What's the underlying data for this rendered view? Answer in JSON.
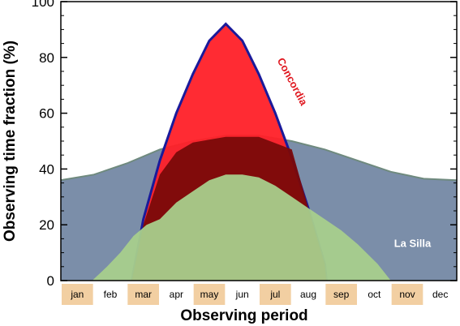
{
  "chart_data": {
    "type": "area",
    "xlabel": "Observing period",
    "ylabel": "Observing time fraction (%)",
    "ylim": [
      0,
      100
    ],
    "yticks": [
      "0",
      "20",
      "40",
      "60",
      "80",
      "100"
    ],
    "months": [
      "jan",
      "feb",
      "mar",
      "apr",
      "may",
      "jun",
      "jul",
      "aug",
      "sep",
      "oct",
      "nov",
      "dec"
    ],
    "highlighted_months": [
      "jan",
      "mar",
      "may",
      "jul",
      "sep",
      "nov"
    ],
    "highlight_color": "#f2cfa2",
    "grid": false,
    "series": [
      {
        "name": "La Silla",
        "color": "#7b8ea9",
        "label_color": "#ffffff",
        "points": [
          {
            "month": 0.0,
            "value": 36
          },
          {
            "month": 1.0,
            "value": 38
          },
          {
            "month": 2.0,
            "value": 42
          },
          {
            "month": 3.0,
            "value": 47
          },
          {
            "month": 4.0,
            "value": 50
          },
          {
            "month": 5.0,
            "value": 52
          },
          {
            "month": 6.0,
            "value": 52
          },
          {
            "month": 7.0,
            "value": 50
          },
          {
            "month": 8.0,
            "value": 47
          },
          {
            "month": 9.0,
            "value": 43
          },
          {
            "month": 10.0,
            "value": 39
          },
          {
            "month": 11.0,
            "value": 36.5
          },
          {
            "month": 12.0,
            "value": 36
          }
        ]
      },
      {
        "name": "Concordia",
        "color": "#ff2028",
        "label_color": "#e01820",
        "points": [
          {
            "month": 2.15,
            "value": 0
          },
          {
            "month": 2.5,
            "value": 22
          },
          {
            "month": 3.0,
            "value": 43
          },
          {
            "month": 3.5,
            "value": 60
          },
          {
            "month": 4.0,
            "value": 74
          },
          {
            "month": 4.5,
            "value": 86
          },
          {
            "month": 5.0,
            "value": 92
          },
          {
            "month": 5.5,
            "value": 86
          },
          {
            "month": 6.0,
            "value": 74
          },
          {
            "month": 6.5,
            "value": 60
          },
          {
            "month": 7.0,
            "value": 44
          },
          {
            "month": 7.5,
            "value": 26
          },
          {
            "month": 8.0,
            "value": 6
          },
          {
            "month": 8.05,
            "value": 0
          }
        ]
      },
      {
        "name": "",
        "color": "#7a0a0a",
        "points": [
          {
            "month": 2.15,
            "value": 0
          },
          {
            "month": 2.5,
            "value": 20
          },
          {
            "month": 3.0,
            "value": 38
          },
          {
            "month": 3.5,
            "value": 46
          },
          {
            "month": 4.0,
            "value": 49.5
          },
          {
            "month": 5.0,
            "value": 51.5
          },
          {
            "month": 6.0,
            "value": 51.5
          },
          {
            "month": 7.0,
            "value": 47
          },
          {
            "month": 7.5,
            "value": 26
          },
          {
            "month": 8.0,
            "value": 6
          },
          {
            "month": 8.05,
            "value": 0
          }
        ]
      },
      {
        "name": "",
        "color": "#a8cf8c",
        "points": [
          {
            "month": 0.95,
            "value": 0
          },
          {
            "month": 1.4,
            "value": 5
          },
          {
            "month": 1.8,
            "value": 10
          },
          {
            "month": 2.2,
            "value": 16
          },
          {
            "month": 2.6,
            "value": 20
          },
          {
            "month": 3.0,
            "value": 22
          },
          {
            "month": 3.5,
            "value": 28
          },
          {
            "month": 4.0,
            "value": 32
          },
          {
            "month": 4.5,
            "value": 36
          },
          {
            "month": 5.0,
            "value": 38
          },
          {
            "month": 5.5,
            "value": 38
          },
          {
            "month": 6.0,
            "value": 37
          },
          {
            "month": 6.5,
            "value": 34
          },
          {
            "month": 7.0,
            "value": 30
          },
          {
            "month": 7.5,
            "value": 26
          },
          {
            "month": 8.0,
            "value": 22
          },
          {
            "month": 8.5,
            "value": 18
          },
          {
            "month": 9.0,
            "value": 13
          },
          {
            "month": 9.6,
            "value": 6
          },
          {
            "month": 10.0,
            "value": 0
          }
        ]
      }
    ],
    "annotations": [
      {
        "text": "Concordia",
        "series": "Concordia"
      },
      {
        "text": "La Silla",
        "series": "La Silla"
      }
    ]
  }
}
